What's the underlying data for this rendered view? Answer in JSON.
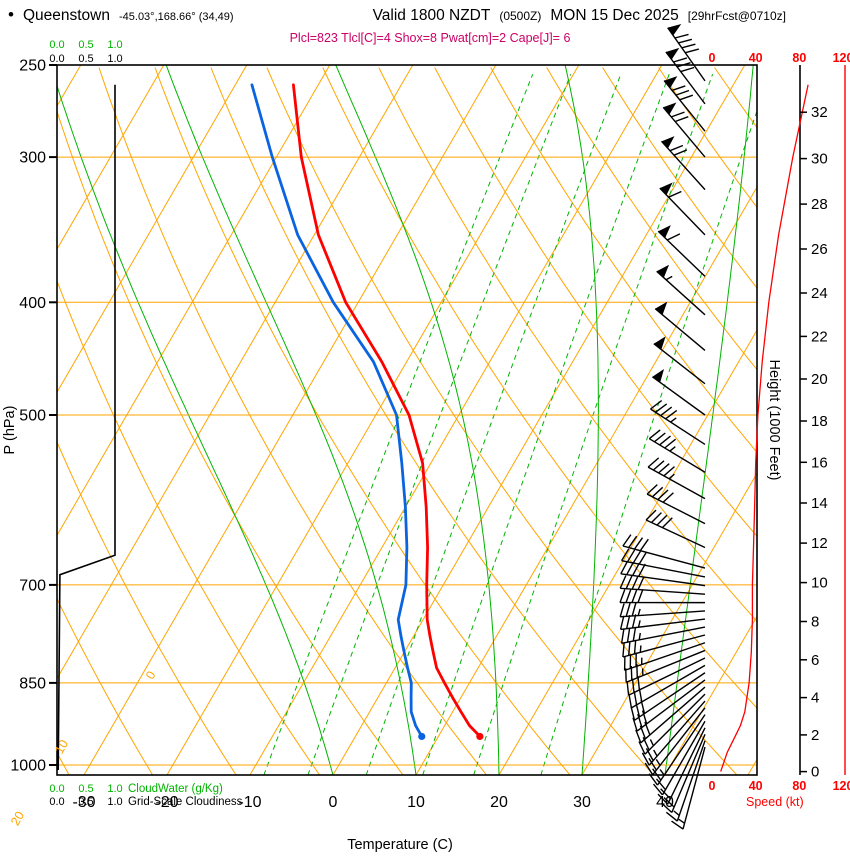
{
  "header": {
    "bullet": "•",
    "station": "Queenstown",
    "coords": "-45.03°,168.66° (34,49)",
    "valid_main": "Valid 1800 NZDT",
    "valid_z": "(0500Z)",
    "valid_date": "MON 15 Dec 2025",
    "fcst": "[29hrFcst@0710z]",
    "params": "Plcl=823 Tlcl[C]=4 Shox=8 Pwat[cm]=2 Cape[J]= 6"
  },
  "axes": {
    "pressure_label": "P (hPa)",
    "pressure_ticks": [
      250,
      300,
      400,
      500,
      700,
      850,
      1000
    ],
    "temp_label": "Temperature (C)",
    "temp_ticks": [
      -30,
      -20,
      -10,
      0,
      10,
      20,
      30,
      40
    ],
    "height_label": "Height (1000 Feet)",
    "height_ticks": [
      0,
      2,
      4,
      6,
      8,
      10,
      12,
      14,
      16,
      18,
      20,
      22,
      24,
      26,
      28,
      30,
      32
    ],
    "speed_label": "Speed (kt)",
    "speed_ticks": [
      0,
      40,
      80,
      120
    ],
    "cloudwater_label": "CloudWater (g/Kg)",
    "cloudiness_label": "Grid-Scale Cloudiness",
    "scale_ticks": [
      "0.0",
      "0.5",
      "1.0"
    ]
  },
  "chart_data": {
    "type": "skewt-logp",
    "pressure_range_hpa": [
      250,
      1020
    ],
    "pressure_gridlines": [
      300,
      400,
      500,
      700,
      850,
      1000
    ],
    "isotherms_c": {
      "min": -80,
      "max": 50,
      "step": 10
    },
    "dry_adiabats_k": {
      "min": 240,
      "max": 450,
      "step": 10
    },
    "moist_adiabats_surface_c": [
      0,
      10,
      20,
      30,
      40
    ],
    "mixing_ratio_gkg": [
      2,
      3,
      5,
      8,
      12,
      20
    ],
    "adiabat_left_labels_c": [
      10,
      0,
      -10,
      -20,
      -30
    ],
    "isotherm_right_labels": [
      [
        0,
        205
      ],
      [
        10,
        318
      ],
      [
        20,
        392
      ],
      [
        30,
        468
      ]
    ],
    "sounding": {
      "pressure_hpa": [
        945,
        925,
        900,
        875,
        850,
        825,
        800,
        775,
        750,
        700,
        650,
        600,
        550,
        500,
        450,
        400,
        350,
        300,
        260
      ],
      "temperature_c": [
        15,
        13,
        11,
        9,
        7,
        5,
        3.5,
        2,
        0.5,
        -2,
        -4.5,
        -7.5,
        -11,
        -16,
        -23,
        -31.5,
        -39.5,
        -47,
        -53
      ],
      "dewpoint_c": [
        8,
        6.5,
        5,
        4,
        3,
        1.5,
        0,
        -1.5,
        -3,
        -4.5,
        -7,
        -10,
        -13.5,
        -17.5,
        -24,
        -33,
        -42,
        -50.5,
        -58
      ]
    },
    "cloudiness_profile": [
      [
        260,
        1.0
      ],
      [
        660,
        1.0
      ],
      [
        686,
        0.05
      ],
      [
        1010,
        0.02
      ]
    ],
    "cloudwater_profile_gkg": [
      [
        1010,
        0.0
      ],
      [
        260,
        0.0
      ]
    ],
    "speed_profile_kt": [
      [
        1013,
        8
      ],
      [
        975,
        14
      ],
      [
        950,
        20
      ],
      [
        925,
        26
      ],
      [
        900,
        30
      ],
      [
        850,
        34
      ],
      [
        800,
        36
      ],
      [
        750,
        37
      ],
      [
        700,
        37
      ],
      [
        650,
        38
      ],
      [
        600,
        39
      ],
      [
        550,
        40
      ],
      [
        500,
        42
      ],
      [
        450,
        46
      ],
      [
        400,
        52
      ],
      [
        350,
        61
      ],
      [
        300,
        74
      ],
      [
        260,
        88
      ]
    ],
    "wind_p_dir_kt": [
      [
        965,
        195,
        15
      ],
      [
        953,
        199,
        15
      ],
      [
        941,
        203,
        20
      ],
      [
        929,
        206,
        20
      ],
      [
        917,
        210,
        20
      ],
      [
        905,
        214,
        25
      ],
      [
        893,
        218,
        25
      ],
      [
        881,
        221,
        25
      ],
      [
        869,
        225,
        25
      ],
      [
        857,
        229,
        30
      ],
      [
        845,
        233,
        30
      ],
      [
        833,
        236,
        30
      ],
      [
        821,
        240,
        30
      ],
      [
        809,
        244,
        30
      ],
      [
        797,
        248,
        35
      ],
      [
        785,
        251,
        35
      ],
      [
        773,
        255,
        35
      ],
      [
        761,
        259,
        35
      ],
      [
        749,
        263,
        35
      ],
      [
        737,
        266,
        35
      ],
      [
        725,
        270,
        40
      ],
      [
        713,
        274,
        40
      ],
      [
        701,
        278,
        40
      ],
      [
        689,
        281,
        40
      ],
      [
        677,
        285,
        40
      ],
      [
        650,
        295,
        40
      ],
      [
        620,
        297,
        42
      ],
      [
        590,
        299,
        44
      ],
      [
        560,
        301,
        45
      ],
      [
        530,
        303,
        46
      ],
      [
        500,
        306,
        48
      ],
      [
        470,
        308,
        50
      ],
      [
        440,
        310,
        52
      ],
      [
        410,
        312,
        55
      ],
      [
        380,
        314,
        58
      ],
      [
        350,
        316,
        62
      ],
      [
        320,
        318,
        68
      ],
      [
        300,
        320,
        72
      ],
      [
        285,
        321,
        78
      ],
      [
        270,
        323,
        82
      ],
      [
        258,
        325,
        88
      ]
    ],
    "colors": {
      "grid_orange": "#FFA500",
      "green": "#00B400",
      "temperature_red": "#FF0000",
      "dewpoint_blue": "#0A64E0",
      "black": "#000000",
      "params_magenta": "#CC0066",
      "speed_red": "#FF0000"
    }
  }
}
